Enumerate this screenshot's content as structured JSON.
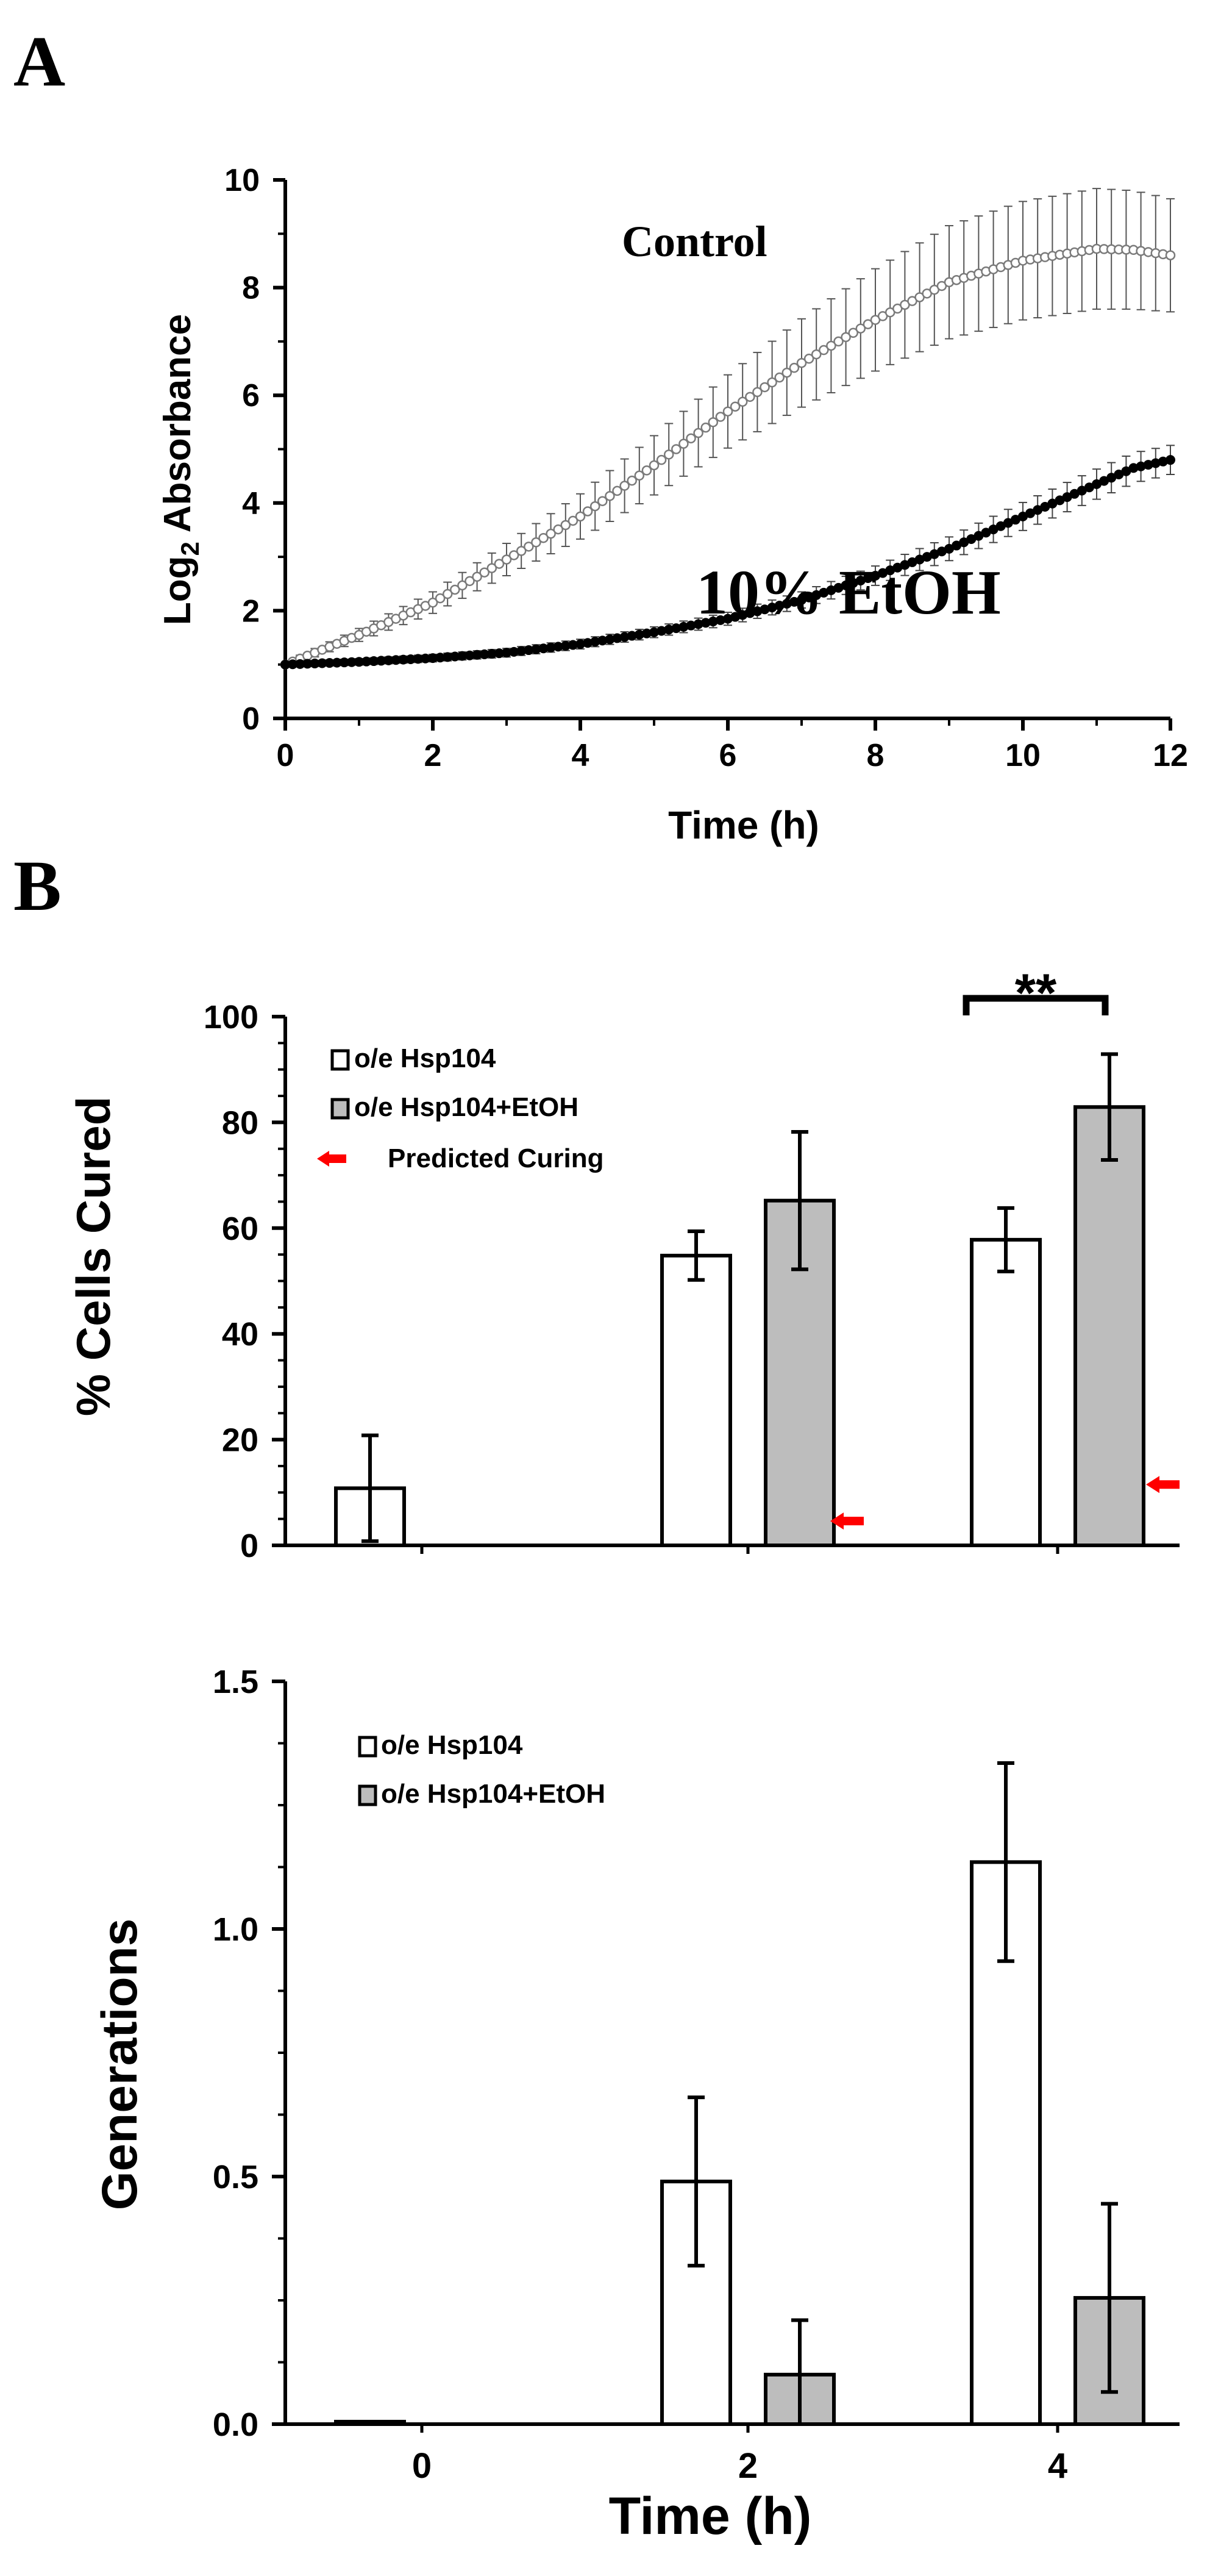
{
  "figure": {
    "panel_a_label": "A",
    "panel_b_label": "B"
  },
  "colors": {
    "axis": "#000000",
    "open_marker": "#7a7a7a",
    "filled_marker": "#000000",
    "bar_open": "#ffffff",
    "bar_gray": "#bdbdbd",
    "arrow": "#ff0000"
  },
  "chart_data": [
    {
      "id": "growth",
      "type": "line",
      "xlabel": "Time (h)",
      "ylabel_pre": "Log",
      "ylabel_sub": "2",
      "ylabel_post": " Absorbance",
      "xlim": [
        0,
        12
      ],
      "ylim": [
        0,
        10
      ],
      "xticks": [
        0,
        2,
        4,
        6,
        8,
        10,
        12
      ],
      "yticks": [
        0,
        2,
        4,
        6,
        8,
        10
      ],
      "annotations": {
        "control": "Control",
        "etoh": "10% EtOH"
      },
      "series": [
        {
          "name": "Control",
          "marker": "open-circle",
          "knots_x": [
            0,
            1,
            2,
            3,
            4,
            5,
            6,
            7,
            8,
            9,
            10,
            11,
            11.5,
            12
          ],
          "knots_y": [
            1.0,
            1.55,
            2.15,
            2.95,
            3.75,
            4.7,
            5.7,
            6.6,
            7.4,
            8.1,
            8.5,
            8.72,
            8.7,
            8.6
          ],
          "err_knots": [
            0.05,
            0.12,
            0.2,
            0.3,
            0.42,
            0.55,
            0.68,
            0.82,
            0.95,
            1.05,
            1.1,
            1.12,
            1.1,
            1.05
          ]
        },
        {
          "name": "10% EtOH",
          "marker": "filled-circle",
          "knots_x": [
            0,
            1,
            2,
            3,
            4,
            5,
            6,
            7,
            8,
            9,
            10,
            11,
            11.5,
            12
          ],
          "knots_y": [
            1.0,
            1.05,
            1.12,
            1.22,
            1.38,
            1.6,
            1.85,
            2.2,
            2.65,
            3.15,
            3.75,
            4.35,
            4.65,
            4.8
          ],
          "err_knots": [
            0.05,
            0.06,
            0.07,
            0.08,
            0.09,
            0.1,
            0.12,
            0.15,
            0.18,
            0.22,
            0.26,
            0.28,
            0.28,
            0.27
          ]
        }
      ]
    },
    {
      "id": "curing",
      "type": "bar",
      "ylabel": "% Cells Cured",
      "ylim": [
        0,
        100
      ],
      "yticks": [
        0,
        20,
        40,
        60,
        80,
        100
      ],
      "categories": [
        "0",
        "2",
        "4"
      ],
      "legend": [
        "o/e Hsp104",
        "o/e Hsp104+EtOH",
        "Predicted Curing"
      ],
      "significance": "**",
      "series": [
        {
          "name": "o/e Hsp104",
          "values": [
            10.8,
            54.8,
            57.8
          ],
          "errors": [
            10.0,
            4.6,
            6.0
          ]
        },
        {
          "name": "o/e Hsp104+EtOH",
          "values": [
            null,
            65.2,
            82.9
          ],
          "errors": [
            null,
            13.0,
            10.0
          ]
        }
      ],
      "predicted_curing": [
        null,
        4.6,
        11.5
      ]
    },
    {
      "id": "generations",
      "type": "bar",
      "ylabel": "Generations",
      "xlabel": "Time (h)",
      "ylim": [
        0,
        1.5
      ],
      "yticks": [
        "0.0",
        "0.5",
        "1.0",
        "1.5"
      ],
      "categories": [
        "0",
        "2",
        "4"
      ],
      "legend": [
        "o/e Hsp104",
        "o/e Hsp104+EtOH"
      ],
      "series": [
        {
          "name": "o/e Hsp104",
          "values": [
            0.005,
            0.49,
            1.135
          ],
          "errors": [
            0,
            0.17,
            0.2
          ]
        },
        {
          "name": "o/e Hsp104+EtOH",
          "values": [
            null,
            0.1,
            0.255
          ],
          "errors": [
            null,
            0.11,
            0.19
          ]
        }
      ]
    }
  ]
}
